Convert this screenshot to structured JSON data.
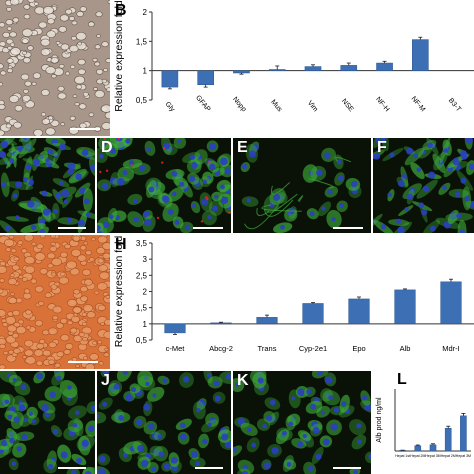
{
  "panels": {
    "B": "B",
    "D": "D",
    "E": "E",
    "F": "F",
    "H": "H",
    "J": "J",
    "K": "K",
    "L": "L"
  },
  "colors": {
    "bar": "#3d6fb5",
    "bar_edge": "#2a5590",
    "error_bar": "#1a1a1a",
    "phase_contrast": "#a8968a",
    "hepatocyte_phase": "#d87238",
    "fluor_background": "#0a1208",
    "nucleus": "#2a3fc0",
    "cytoskeleton": "#3fae3a",
    "annotation_red": "#ff2020",
    "scale_bar": "#ffffff"
  },
  "chart_data": [
    {
      "id": "B",
      "type": "bar",
      "ylabel": "Relative expression fold",
      "categories": [
        "Gly",
        "GFAP",
        "Nopp",
        "Mus",
        "Vim",
        "NSE",
        "NF-H",
        "NF-M",
        "B3-T"
      ],
      "values": [
        0.72,
        0.76,
        0.96,
        1.02,
        1.07,
        1.09,
        1.13,
        1.53,
        null
      ],
      "errors": [
        0.03,
        0.04,
        0.02,
        0.06,
        0.03,
        0.04,
        0.03,
        0.04,
        null
      ],
      "baseline": 1,
      "ylim": [
        0.5,
        2
      ],
      "yticks": [
        "0,5",
        "1",
        "1,5",
        "2"
      ]
    },
    {
      "id": "H",
      "type": "bar",
      "ylabel": "Relative expression fold",
      "categories": [
        "c-Met",
        "Abcg-2",
        "Trans",
        "Cyp-2e1",
        "Epo",
        "Alb",
        "Mdr-I"
      ],
      "values": [
        0.72,
        1.03,
        1.2,
        1.63,
        1.77,
        2.05,
        2.3
      ],
      "errors": [
        0.05,
        0.02,
        0.07,
        0.03,
        0.06,
        0.03,
        0.08
      ],
      "baseline": 1,
      "ylim": [
        0.5,
        3.5
      ],
      "yticks": [
        "0,5",
        "1",
        "1,5",
        "2",
        "2,5",
        "3",
        "3,5"
      ]
    },
    {
      "id": "L",
      "type": "bar",
      "ylabel": "Alb prod ng/ml",
      "categories": [
        "Hepat 1st",
        "Hepat 2M",
        "Hepat 3M",
        "Hepat 2M",
        "Hepat 3M"
      ],
      "values": [
        0.3,
        2.5,
        3.0,
        11,
        17
      ],
      "errors": [
        0.1,
        0.4,
        0.5,
        1.0,
        1.2
      ],
      "ylim": [
        0,
        30
      ]
    }
  ]
}
